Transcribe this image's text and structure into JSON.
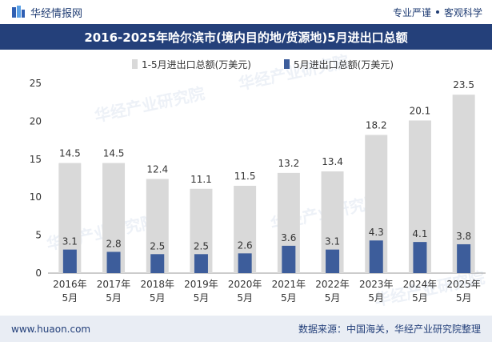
{
  "header": {
    "brand": "华经情报网",
    "tag_left": "专业严谨",
    "tag_right": "客观科学"
  },
  "title": "2016-2025年哈尔滨市(境内目的地/货源地)5月进出口总额",
  "footer": {
    "website": "www.huaon.com",
    "source": "数据来源：中国海关，华经产业研究院整理"
  },
  "watermark": "华经产业研究院",
  "colors": {
    "title_bg": "#24407a",
    "series_cumulative": "#d9d9d9",
    "series_month": "#3d5d9b"
  },
  "chart_data": {
    "type": "bar",
    "categories": [
      "2016年\n5月",
      "2017年\n5月",
      "2018年\n5月",
      "2019年\n5月",
      "2020年\n5月",
      "2021年\n5月",
      "2022年\n5月",
      "2023年\n5月",
      "2024年\n5月",
      "2025年\n5月"
    ],
    "series": [
      {
        "name": "1-5月进出口总额(万美元)",
        "values": [
          14.5,
          14.5,
          12.4,
          11.1,
          11.5,
          13.2,
          13.4,
          18.2,
          20.1,
          23.5
        ]
      },
      {
        "name": "5月进出口总额(万美元)",
        "values": [
          3.1,
          2.8,
          2.5,
          2.5,
          2.6,
          3.6,
          3.1,
          4.3,
          4.1,
          3.8
        ]
      }
    ],
    "ylim": [
      0,
      25
    ],
    "yticks": [
      0,
      5,
      10,
      15,
      20,
      25
    ],
    "legend": "top-center",
    "grid": false
  }
}
